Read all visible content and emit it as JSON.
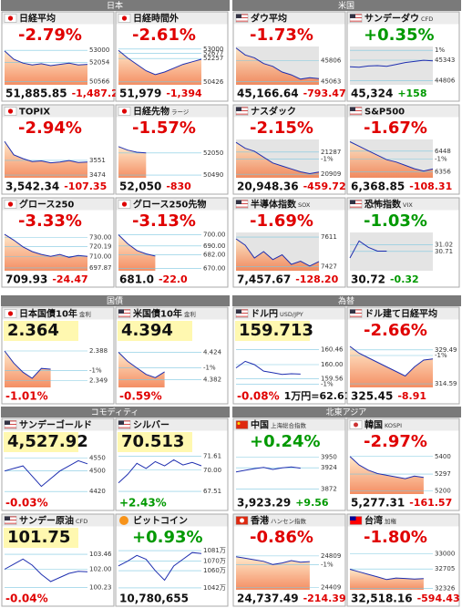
{
  "sections": [
    {
      "title": "日本",
      "chart_bg": "#ffffff",
      "tiles": [
        {
          "name": "日経平均",
          "flag": "jp",
          "top": "-2.79%",
          "top_color": "#e00000",
          "bottom": [
            {
              "text": "51,885.85",
              "color": "#111111"
            },
            {
              "text": "-1,487.22",
              "color": "#e00000"
            }
          ],
          "area": true,
          "ylim": [
            50300,
            53300
          ],
          "line": [
            52950,
            52300,
            52000,
            51850,
            51950,
            51800,
            51900,
            52000,
            51850,
            51900
          ],
          "labels": [
            53000,
            52054,
            50566
          ]
        },
        {
          "name": "日経時間外",
          "flag": "jp",
          "top": "-2.61%",
          "top_color": "#e00000",
          "bottom": [
            {
              "text": "51,979",
              "color": "#111111"
            },
            {
              "text": "-1,394",
              "color": "#e00000"
            }
          ],
          "area": true,
          "ylim": [
            50200,
            53200
          ],
          "line": [
            52900,
            52300,
            51800,
            51300,
            51000,
            51200,
            51500,
            51800,
            52000,
            52200
          ],
          "labels": [
            53000,
            52677,
            52257,
            50426
          ]
        },
        {
          "name": "TOPIX",
          "flag": "jp",
          "top": "-2.94%",
          "top_color": "#e00000",
          "bottom": [
            {
              "text": "3,542.34",
              "color": "#111111"
            },
            {
              "text": "-107.35",
              "color": "#e00000"
            }
          ],
          "area": true,
          "ylim": [
            3460,
            3660
          ],
          "line": [
            3650,
            3580,
            3560,
            3545,
            3548,
            3538,
            3542,
            3550,
            3540,
            3542
          ],
          "labels": [
            3551,
            3474
          ]
        },
        {
          "name": "日経先物",
          "tag": "ラージ",
          "flag": "jp",
          "top": "-1.57%",
          "top_color": "#e00000",
          "bottom": [
            {
              "text": "52,050",
              "color": "#111111"
            },
            {
              "text": "-830",
              "color": "#e00000"
            }
          ],
          "area": true,
          "ylim": [
            50300,
            53000
          ],
          "line": [
            52500,
            52250,
            52100,
            52050
          ],
          "labels": [
            52050,
            50490
          ]
        },
        {
          "name": "グロース250",
          "flag": "jp",
          "top": "-3.33%",
          "top_color": "#e00000",
          "bottom": [
            {
              "text": "709.93",
              "color": "#111111"
            },
            {
              "text": "-24.47",
              "color": "#e00000"
            }
          ],
          "area": true,
          "ylim": [
            695,
            735
          ],
          "line": [
            733,
            727,
            720,
            715,
            712,
            710,
            712,
            709,
            711,
            710
          ],
          "labels": [
            {
              "value": 730,
              "label": "730.00"
            },
            720.19,
            {
              "value": 710,
              "label": "710.00"
            },
            697.87
          ]
        },
        {
          "name": "グロース250先物",
          "flag": "jp",
          "top": "-3.13%",
          "top_color": "#e00000",
          "bottom": [
            {
              "text": "681.0",
              "color": "#111111"
            },
            {
              "text": "-22.0",
              "color": "#e00000"
            }
          ],
          "area": true,
          "ylim": [
            668,
            702
          ],
          "line": [
            700,
            692,
            686,
            683,
            681
          ],
          "labels": [
            {
              "value": 700,
              "label": "700.00"
            },
            {
              "value": 690,
              "label": "690.00"
            },
            {
              "value": 682,
              "label": "682.00"
            },
            {
              "value": 670,
              "label": "670.00"
            }
          ]
        }
      ]
    },
    {
      "title": "米国",
      "chart_bg": "#e4e4e4",
      "tiles": [
        {
          "name": "ダウ平均",
          "flag": "us",
          "top": "-1.73%",
          "top_color": "#e00000",
          "bottom": [
            {
              "text": "45,166.64",
              "color": "#111111"
            },
            {
              "text": "-793.47",
              "color": "#e00000"
            }
          ],
          "area": true,
          "ylim": [
            44950,
            46300
          ],
          "line": [
            46250,
            46000,
            45900,
            45700,
            45600,
            45400,
            45300,
            45150,
            45200,
            45167
          ],
          "labels": [
            45806,
            45063
          ]
        },
        {
          "name": "サンデーダウ",
          "tag": "CFD",
          "flag": "us",
          "top": "+0.35%",
          "top_color": "#009900",
          "bottom": [
            {
              "text": "45,324",
              "color": "#111111"
            },
            {
              "text": "+158",
              "color": "#009900"
            }
          ],
          "area": false,
          "ylim": [
            44700,
            45700
          ],
          "line": [
            45170,
            45160,
            45190,
            45200,
            45180,
            45230,
            45280,
            45310,
            45340,
            45324
          ],
          "labels": [
            {
              "value": 45600,
              "label": "1%"
            },
            45343,
            44806
          ]
        },
        {
          "name": "ナスダック",
          "flag": "us",
          "top": "-2.15%",
          "top_color": "#e00000",
          "bottom": [
            {
              "text": "20,948.36",
              "color": "#111111"
            },
            {
              "text": "-459.72",
              "color": "#e00000"
            }
          ],
          "area": true,
          "ylim": [
            20850,
            21500
          ],
          "line": [
            21450,
            21350,
            21300,
            21200,
            21100,
            21050,
            21000,
            20950,
            20920,
            20948
          ],
          "labels": [
            21287,
            {
              "value": 21170,
              "label": "-1%"
            },
            20909
          ]
        },
        {
          "name": "S&P500",
          "flag": "us",
          "top": "-1.67%",
          "top_color": "#e00000",
          "bottom": [
            {
              "text": "6,368.85",
              "color": "#111111"
            },
            {
              "text": "-108.31",
              "color": "#e00000"
            }
          ],
          "area": true,
          "ylim": [
            6330,
            6500
          ],
          "line": [
            6490,
            6470,
            6450,
            6430,
            6410,
            6400,
            6385,
            6370,
            6360,
            6369
          ],
          "labels": [
            6448,
            {
              "value": 6412,
              "label": "-1%"
            },
            6356
          ]
        },
        {
          "name": "半導体指数",
          "tag": "SOX",
          "flag": "us",
          "top": "-1.69%",
          "top_color": "#e00000",
          "bottom": [
            {
              "text": "7,457.67",
              "color": "#111111"
            },
            {
              "text": "-128.20",
              "color": "#e00000"
            }
          ],
          "area": true,
          "ylim": [
            7400,
            7640
          ],
          "line": [
            7600,
            7560,
            7480,
            7520,
            7470,
            7500,
            7440,
            7460,
            7430,
            7458
          ],
          "labels": [
            7611,
            7427
          ]
        },
        {
          "name": "恐怖指数",
          "tag": "VIX",
          "flag": "us",
          "top": "-1.03%",
          "top_color": "#009900",
          "bottom": [
            {
              "text": "30.72",
              "color": "#111111"
            },
            {
              "text": "-0.32",
              "color": "#009900"
            }
          ],
          "area": false,
          "ylim": [
            29.8,
            31.6
          ],
          "line": [
            30.4,
            31.2,
            30.9,
            30.72,
            30.72
          ],
          "labels": [
            31.02,
            30.71
          ]
        }
      ]
    },
    {
      "title": "国債",
      "chart_bg": "#ffffff",
      "tiles": [
        {
          "name": "日本国債10年",
          "tag": "金利",
          "flag": "jp",
          "top": "2.364",
          "top_color": "#111111",
          "highlight": true,
          "bottom": [
            {
              "text": "-1.01%",
              "color": "#e00000"
            }
          ],
          "area": true,
          "ylim": [
            2.34,
            2.4
          ],
          "line": [
            2.388,
            2.372,
            2.36,
            2.352,
            2.365,
            2.364
          ],
          "labels": [
            2.388,
            {
              "value": 2.362,
              "label": "-1%"
            },
            2.349
          ]
        },
        {
          "name": "米国債10年",
          "tag": "金利",
          "flag": "us",
          "top": "4.394",
          "top_color": "#111111",
          "highlight": true,
          "bottom": [
            {
              "text": "-0.59%",
              "color": "#e00000"
            }
          ],
          "area": true,
          "ylim": [
            4.37,
            4.44
          ],
          "line": [
            4.424,
            4.41,
            4.4,
            4.39,
            4.385,
            4.394
          ],
          "labels": [
            4.424,
            {
              "value": 4.4,
              "label": "-1%"
            },
            4.382
          ]
        }
      ]
    },
    {
      "title": "為替",
      "chart_bg": "#ffffff",
      "tiles": [
        {
          "name": "ドル円",
          "tag": "USD/JPY",
          "flag": "us",
          "top": "159.713",
          "top_color": "#111111",
          "highlight": true,
          "bottom": [
            {
              "text": "-0.08%",
              "color": "#e00000"
            },
            {
              "text": "1万円=62.61",
              "color": "#111111"
            }
          ],
          "area": false,
          "ylim": [
            159.3,
            160.7
          ],
          "line": [
            159.9,
            160.1,
            160,
            159.8,
            159.75,
            159.7,
            159.72,
            159.71
          ],
          "labels": [
            160.46,
            {
              "value": 160,
              "label": "160.00"
            },
            159.56,
            {
              "value": 159.4,
              "label": "-1%"
            }
          ]
        },
        {
          "name": "ドル建て日経平均",
          "flag": "us",
          "top": "-2.66%",
          "top_color": "#e00000",
          "bottom": [
            {
              "text": "325.45",
              "color": "#111111"
            },
            {
              "text": "-8.91",
              "color": "#e00000"
            }
          ],
          "area": true,
          "ylim": [
            313,
            333
          ],
          "line": [
            331,
            328,
            326,
            324,
            322,
            320,
            318,
            322,
            325,
            325.5
          ],
          "labels": [
            329.49,
            {
              "value": 327,
              "label": "-1%"
            },
            314.59
          ]
        }
      ]
    },
    {
      "title": "コモディティ",
      "chart_bg": "#ffffff",
      "tiles": [
        {
          "name": "サンデーゴールド",
          "flag": "us",
          "top": "4,527.92",
          "top_color": "#111111",
          "highlight": true,
          "bottom": [
            {
              "text": "-0.03%",
              "color": "#e00000"
            }
          ],
          "area": false,
          "ylim": [
            4410,
            4570
          ],
          "line": [
            4500,
            4510,
            4520,
            4480,
            4440,
            4470,
            4500,
            4520,
            4540,
            4528
          ],
          "labels": [
            4550,
            4500,
            4420
          ]
        },
        {
          "name": "シルバー",
          "flag": "us",
          "top": "70.513",
          "top_color": "#111111",
          "highlight": true,
          "bottom": [
            {
              "text": "+2.43%",
              "color": "#009900"
            }
          ],
          "area": false,
          "ylim": [
            67.2,
            72
          ],
          "line": [
            68.5,
            69.5,
            70.8,
            70.2,
            71,
            70.5,
            71.2,
            70.6,
            70.9,
            70.51
          ],
          "labels": [
            71.61,
            {
              "value": 70,
              "label": "70.00"
            },
            67.51
          ]
        },
        {
          "name": "サンデー原油",
          "tag": "CFD",
          "flag": "us",
          "top": "101.75",
          "top_color": "#111111",
          "highlight": true,
          "bottom": [
            {
              "text": "-0.04%",
              "color": "#e00000"
            }
          ],
          "area": false,
          "ylim": [
            100,
            104
          ],
          "line": [
            102,
            102.5,
            103,
            102.4,
            101.5,
            100.8,
            101.2,
            101.6,
            101.8,
            101.75
          ],
          "labels": [
            103.46,
            {
              "value": 102,
              "label": "102.00"
            },
            100.23
          ]
        },
        {
          "name": "ビットコイン",
          "flag": "btc",
          "top": "+0.93%",
          "top_color": "#009900",
          "bottom": [
            {
              "text": "10,780,655",
              "color": "#111111"
            }
          ],
          "area": false,
          "ylim": [
            10400000,
            10830000
          ],
          "line": [
            10650000,
            10700000,
            10760000,
            10720000,
            10600000,
            10500000,
            10650000,
            10720000,
            10790000,
            10780655
          ],
          "labels": [
            {
              "value": 10810000,
              "label": "1081万"
            },
            {
              "value": 10700000,
              "label": "1070万"
            },
            {
              "value": 10600000,
              "label": "1060万"
            },
            {
              "value": 10420000,
              "label": "1042万"
            }
          ]
        }
      ]
    },
    {
      "title": "北東アジア",
      "chart_bg": "#ffffff",
      "tiles": [
        {
          "name": "中国",
          "tag": "上海総合指数",
          "flag": "cn",
          "top": "+0.24%",
          "top_color": "#009900",
          "bottom": [
            {
              "text": "3,923.29",
              "color": "#111111"
            },
            {
              "text": "+9.56",
              "color": "#009900"
            }
          ],
          "area": false,
          "ylim": [
            3860,
            3960
          ],
          "line": [
            3914,
            3918,
            3922,
            3925,
            3920,
            3924,
            3926,
            3923
          ],
          "labels": [
            3950,
            3924,
            3872
          ]
        },
        {
          "name": "韓国",
          "tag": "KOSPI",
          "flag": "kr",
          "top": "-2.97%",
          "top_color": "#e00000",
          "bottom": [
            {
              "text": "5,277.31",
              "color": "#111111"
            },
            {
              "text": "-161.57",
              "color": "#e00000"
            }
          ],
          "area": true,
          "ylim": [
            5180,
            5420
          ],
          "line": [
            5400,
            5350,
            5320,
            5300,
            5290,
            5280,
            5270,
            5285,
            5277
          ],
          "labels": [
            5400,
            5297,
            5200
          ]
        },
        {
          "name": "香港",
          "tag": "ハンセン指数",
          "flag": "hk",
          "top": "-0.86%",
          "top_color": "#e00000",
          "bottom": [
            {
              "text": "24,737.49",
              "color": "#111111"
            },
            {
              "text": "-214.39",
              "color": "#e00000"
            }
          ],
          "area": true,
          "ylim": [
            24380,
            24900
          ],
          "line": [
            24800,
            24780,
            24760,
            24740,
            24700,
            24720,
            24750,
            24730,
            24737
          ],
          "labels": [
            24809,
            {
              "value": 24700,
              "label": "-1%"
            },
            24409
          ]
        },
        {
          "name": "台湾",
          "tag": "加権",
          "flag": "tw",
          "top": "-1.80%",
          "top_color": "#e00000",
          "bottom": [
            {
              "text": "32,518.16",
              "color": "#111111"
            },
            {
              "text": "-594.43",
              "color": "#e00000"
            }
          ],
          "area": true,
          "ylim": [
            32300,
            33100
          ],
          "line": [
            32700,
            32650,
            32600,
            32550,
            32500,
            32530,
            32520,
            32510,
            32518
          ],
          "labels": [
            33000,
            32705,
            32326
          ]
        }
      ]
    }
  ]
}
